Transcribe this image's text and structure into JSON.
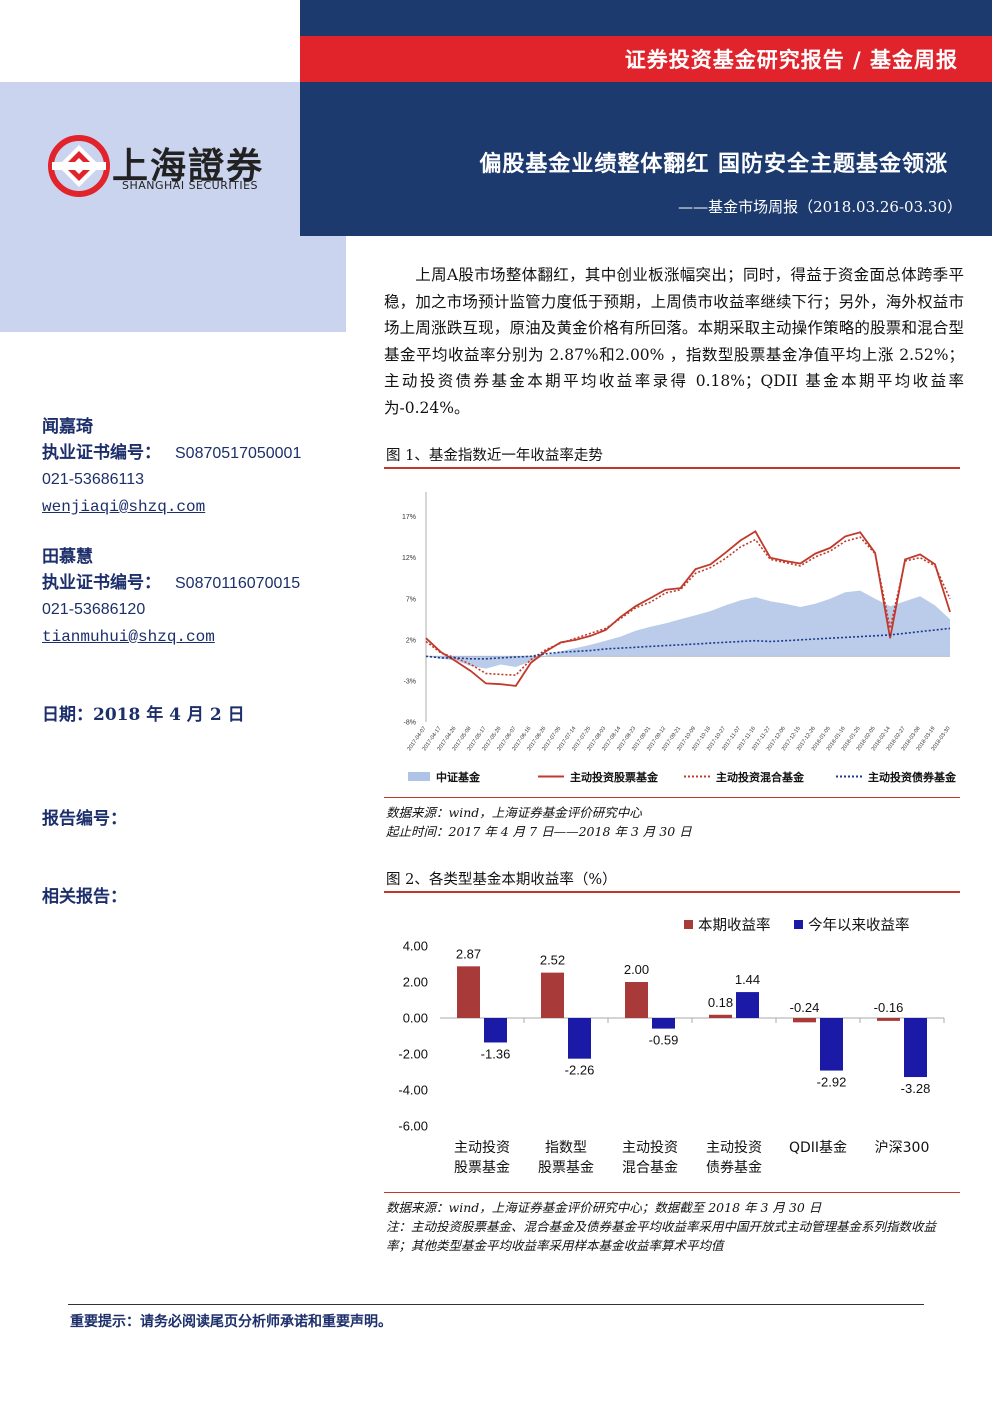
{
  "header": {
    "report_type": "证券投资基金研究报告 / 基金周报",
    "main_title": "偏股基金业绩整体翻红 国防安全主题基金领涨",
    "sub_title": "——基金市场周报（2018.03.26-03.30）",
    "logo_cn": "上海證券",
    "logo_en": "SHANGHAI SECURITIES"
  },
  "analysts": [
    {
      "name": "闻嘉琦",
      "cert_label": "执业证书编号：",
      "cert": "S0870517050001",
      "phone": "021-53686113",
      "email": "wenjiaqi@shzq.com"
    },
    {
      "name": "田慕慧",
      "cert_label": "执业证书编号：",
      "cert": "S0870116070015",
      "phone": "021-53686120",
      "email": "tianmuhui@shzq.com"
    }
  ],
  "date_label": "日期：2018 年 4 月 2 日",
  "report_no_label": "报告编号：",
  "related_label": "相关报告：",
  "intro": "上周A股市场整体翻红，其中创业板涨幅突出；同时，得益于资金面总体跨季平稳，加之市场预计监管力度低于预期，上周债市收益率继续下行；另外，海外权益市场上周涨跌互现，原油及黄金价格有所回落。本期采取主动操作策略的股票和混合型基金平均收益率分别为 2.87%和2.00% ，指数型股票基金净值平均上涨 2.52%；主动投资债券基金本期平均收益率录得 0.18%；QDII 基金本期平均收益率为-0.24%。",
  "figure1": {
    "title": "图 1、基金指数近一年收益率走势",
    "source1": "数据来源：wind，上海证券基金评价研究中心",
    "source2": "起止时间：2017 年 4 月 7 日——2018 年 3 月 30 日"
  },
  "figure2": {
    "title": "图 2、各类型基金本期收益率（%）",
    "source1": "数据来源：wind，上海证券基金评价研究中心；数据截至 2018 年 3 月 30 日",
    "note": "注：主动投资股票基金、混合基金及债券基金平均收益率采用中国开放式主动管理基金系列指数收益率；其他类型基金平均收益率采用样本基金收益率算术平均值"
  },
  "notice": "重要提示：请务必阅读尾页分析师承诺和重要声明。",
  "chart_data": [
    {
      "type": "line",
      "title": "",
      "x_labels": [
        "2017-04-07",
        "2017-04-17",
        "2017-04-26",
        "2017-05-08",
        "2017-05-17",
        "2017-05-26",
        "2017-06-07",
        "2017-06-16",
        "2017-06-26",
        "2017-07-05",
        "2017-07-14",
        "2017-07-25",
        "2017-08-03",
        "2017-08-14",
        "2017-08-23",
        "2017-09-01",
        "2017-09-12",
        "2017-09-21",
        "2017-10-09",
        "2017-10-18",
        "2017-10-27",
        "2017-11-07",
        "2017-11-16",
        "2017-11-27",
        "2017-12-06",
        "2017-12-15",
        "2017-12-26",
        "2018-01-05",
        "2018-01-16",
        "2018-01-25",
        "2018-02-05",
        "2018-02-14",
        "2018-02-27",
        "2018-03-08",
        "2018-03-19",
        "2018-03-30"
      ],
      "y_ticks": [
        "-8%",
        "-3%",
        "2%",
        "7%",
        "12%",
        "17%"
      ],
      "ylim": [
        -8,
        20
      ],
      "series": [
        {
          "name": "中证基金",
          "kind": "area",
          "color": "#aec3e6",
          "values": [
            0,
            -0.3,
            -0.5,
            -1.2,
            -1.5,
            -1.0,
            -1.3,
            -0.6,
            0.1,
            0.6,
            1.0,
            1.4,
            1.9,
            2.4,
            3.1,
            3.6,
            4.0,
            4.5,
            5.0,
            5.5,
            6.2,
            6.8,
            7.2,
            6.7,
            6.4,
            6.0,
            6.4,
            7.0,
            7.8,
            8.0,
            7.0,
            6.1,
            6.7,
            7.3,
            6.2,
            4.5
          ]
        },
        {
          "name": "主动投资股票基金",
          "kind": "line",
          "color": "#c0392b",
          "values": [
            2.2,
            0.5,
            -0.6,
            -1.8,
            -3.3,
            -3.4,
            -3.6,
            -0.8,
            0.6,
            1.7,
            2.0,
            2.5,
            3.2,
            4.8,
            6.1,
            7.1,
            8.1,
            8.3,
            10.6,
            11.2,
            12.6,
            14.1,
            15.2,
            12.0,
            11.6,
            11.3,
            12.5,
            13.2,
            14.6,
            15.1,
            12.6,
            2.2,
            11.8,
            12.4,
            11.2,
            5.4
          ]
        },
        {
          "name": "主动投资混合基金",
          "kind": "dotted",
          "color": "#c0392b",
          "values": [
            1.8,
            0.4,
            -0.2,
            -1.0,
            -2.1,
            -2.2,
            -2.3,
            -0.4,
            0.8,
            1.6,
            2.2,
            2.8,
            3.4,
            4.6,
            5.9,
            6.6,
            7.7,
            8.1,
            10.1,
            10.8,
            11.9,
            13.3,
            14.2,
            11.8,
            11.4,
            11.0,
            12.1,
            12.8,
            14.0,
            14.5,
            12.5,
            3.4,
            11.6,
            12.0,
            11.0,
            7.0
          ]
        },
        {
          "name": "主动投资债券基金",
          "kind": "dotted",
          "color": "#1c3a8c",
          "values": [
            0,
            -0.2,
            -0.2,
            -0.3,
            -0.3,
            -0.2,
            -0.1,
            0,
            0.3,
            0.5,
            0.6,
            0.7,
            0.9,
            1.0,
            1.1,
            1.2,
            1.3,
            1.4,
            1.5,
            1.6,
            1.7,
            1.8,
            1.9,
            1.8,
            1.9,
            2.0,
            2.1,
            2.2,
            2.3,
            2.4,
            2.5,
            2.6,
            2.8,
            3.0,
            3.2,
            3.4
          ]
        }
      ],
      "legend": "bottom"
    },
    {
      "type": "bar",
      "categories": [
        "主动投资\n股票基金",
        "指数型\n股票基金",
        "主动投资\n混合基金",
        "主动投资\n债券基金",
        "QDII基金",
        "沪深300"
      ],
      "series": [
        {
          "name": "本期收益率",
          "color": "#a93a3a",
          "values": [
            2.87,
            2.52,
            2.0,
            0.18,
            -0.24,
            -0.16
          ]
        },
        {
          "name": "今年以来收益率",
          "color": "#1a1aa6",
          "values": [
            -1.36,
            -2.26,
            -0.59,
            1.44,
            -2.92,
            -3.28
          ]
        }
      ],
      "label_text": [
        [
          "2.87",
          "-1.36"
        ],
        [
          "2.52",
          "-2.26"
        ],
        [
          "2.00",
          "-0.59"
        ],
        [
          "0.18",
          "1.44"
        ],
        [
          "-0.24",
          "-2.92"
        ],
        [
          "-0.16",
          "-3.28"
        ]
      ],
      "y_ticks": [
        "4.00",
        "2.00",
        "0.00",
        "-2.00",
        "-4.00",
        "-6.00"
      ],
      "ylim": [
        -6,
        4
      ],
      "legend": "top-right"
    }
  ]
}
